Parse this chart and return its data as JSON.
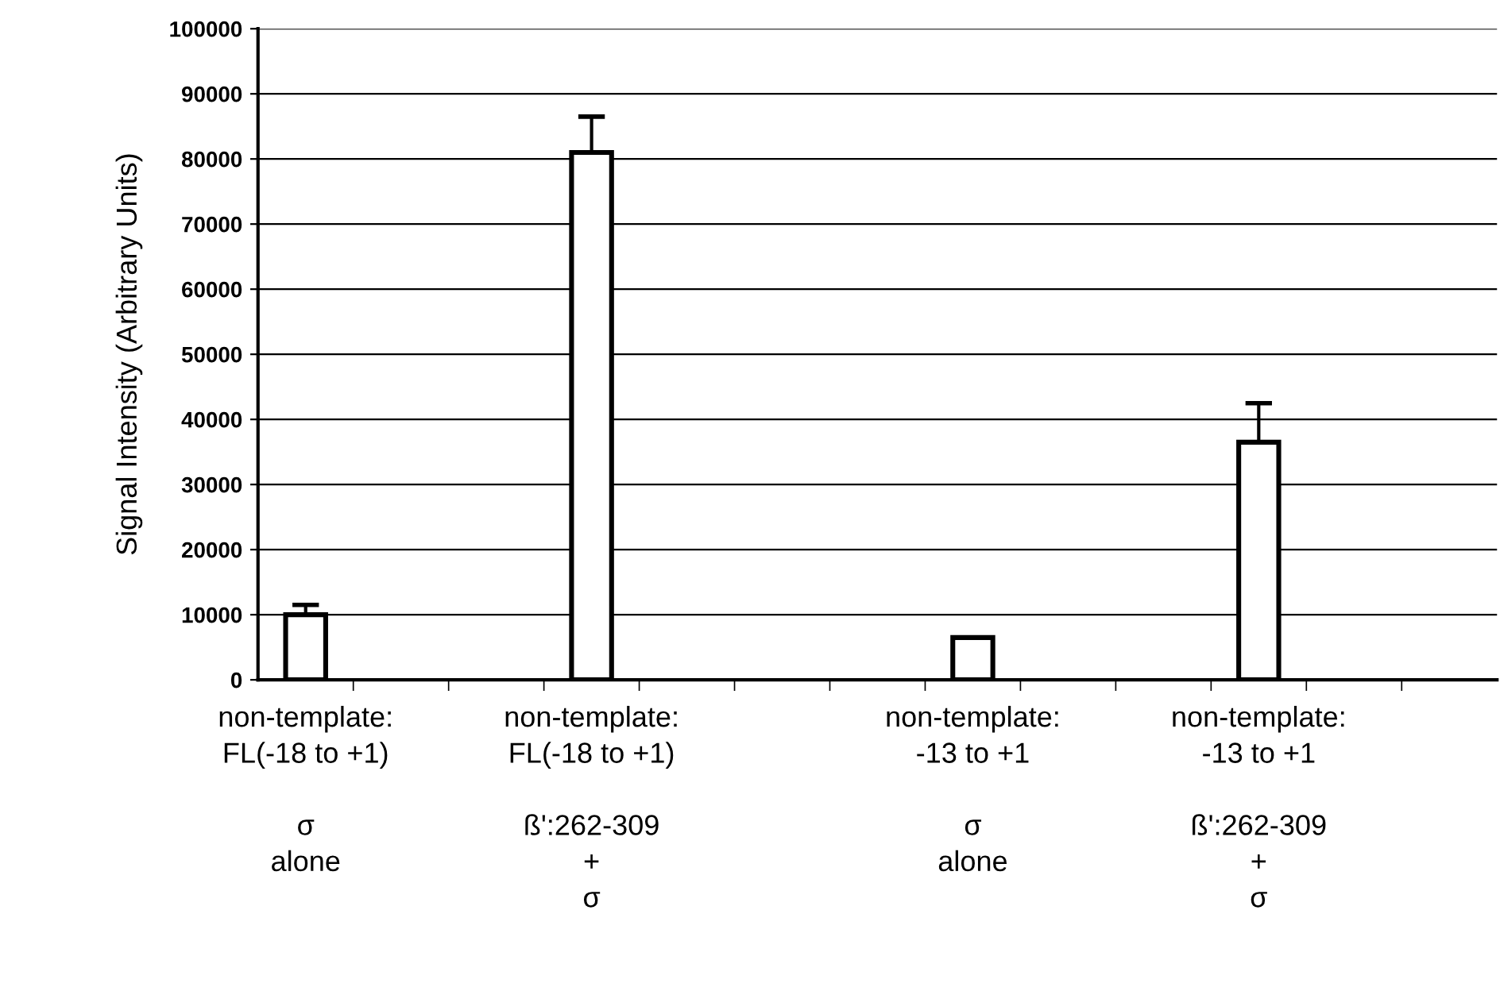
{
  "chart_data": {
    "type": "bar",
    "ylabel": "Signal Intensity (Arbitrary Units)",
    "categories": [
      "non-template:\nFL(-18 to +1)\n\nσ\nalone",
      null,
      null,
      "non-template:\nFL(-18 to +1)\n\nß':262-309\n+\nσ",
      null,
      null,
      null,
      "non-template:\n-13 to +1\n\nσ\nalone",
      null,
      null,
      "non-template:\n-13 to +1\n\nß':262-309\n+\nσ",
      null,
      null
    ],
    "values": [
      10000,
      null,
      null,
      81000,
      null,
      null,
      null,
      6500,
      null,
      null,
      36500,
      null,
      null
    ],
    "errors": [
      1500,
      null,
      null,
      5500,
      null,
      null,
      null,
      null,
      null,
      null,
      6000,
      null,
      null
    ],
    "color": "#ffffff",
    "ylim": [
      0,
      100000
    ],
    "yticks": [
      0,
      10000,
      20000,
      30000,
      40000,
      50000,
      60000,
      70000,
      80000,
      90000,
      100000
    ],
    "grid": "y",
    "legend": false
  }
}
